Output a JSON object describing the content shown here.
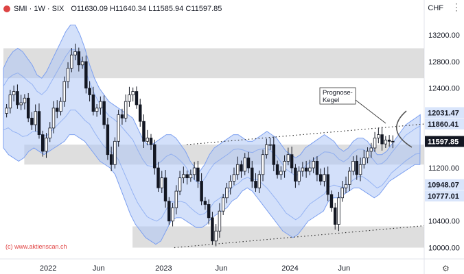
{
  "legend": {
    "symbol": "SMI · 1W · SIX",
    "open": "O11630.09",
    "high": "H11640.34",
    "low": "L11585.94",
    "close": "C11597.85"
  },
  "currency": "CHF",
  "copyright": "(c) www.aktienscan.ch",
  "annotation": [
    "Prognose-",
    "Kegel"
  ],
  "colors": {
    "up": "#ffffff",
    "down": "#131722",
    "band_fill": "#aec6f5",
    "band_line": "#7b9ff0",
    "zone_fill": "#c8c8c8",
    "tag_blue": "#d9e5fb",
    "tag_black": "#131722"
  },
  "chart_data": {
    "type": "candlestick",
    "ylim": [
      9830,
      13500
    ],
    "y_ticks": [
      10000,
      10400,
      10800,
      11200,
      11600,
      12000,
      12400,
      12800,
      13200
    ],
    "y_tick_labels": [
      "10000.00",
      "10400.00",
      "10800.00",
      "11200.00",
      "11600.00",
      "12000.00",
      "12400.00",
      "12800.00",
      "13200.00"
    ],
    "x_labels": [
      {
        "label": "2022",
        "week": 12
      },
      {
        "label": "Jun",
        "week": 26
      },
      {
        "label": "2023",
        "week": 44
      },
      {
        "label": "Jun",
        "week": 60
      },
      {
        "label": "2024",
        "week": 79
      },
      {
        "label": "Jun",
        "week": 94
      }
    ],
    "total_weeks": 101,
    "closes": [
      12100,
      12300,
      12350,
      12150,
      12180,
      12250,
      11950,
      11850,
      12050,
      11700,
      11450,
      11650,
      11800,
      12100,
      12050,
      12200,
      12500,
      12700,
      12900,
      12950,
      12750,
      12800,
      12400,
      12300,
      12050,
      12100,
      12200,
      11850,
      11400,
      11250,
      11600,
      12000,
      11950,
      12200,
      12300,
      12350,
      12150,
      11900,
      11600,
      11650,
      11550,
      11200,
      10900,
      11050,
      10700,
      10400,
      10600,
      10850,
      11050,
      11100,
      11050,
      11100,
      11200,
      11000,
      10700,
      10650,
      10450,
      10100,
      10250,
      10550,
      10750,
      10900,
      11000,
      11100,
      11250,
      11150,
      11350,
      11200,
      11000,
      10900,
      11100,
      11400,
      11550,
      11550,
      11250,
      11100,
      11150,
      11300,
      11400,
      11200,
      11000,
      11150,
      11200,
      11150,
      11200,
      11300,
      11100,
      11000,
      11100,
      10800,
      10600,
      10350,
      10750,
      10900,
      10950,
      11150,
      11300,
      11100,
      11250,
      11350,
      11450,
      11500,
      11650,
      11700,
      11560,
      11620,
      11600,
      11597.85
    ],
    "upper_band": [
      12700,
      12850,
      12950,
      13000,
      12950,
      12850,
      12750,
      12600,
      12550,
      12650,
      12800,
      12950,
      13100,
      13250,
      13350,
      13350,
      13200,
      13000,
      12750,
      12550,
      12400,
      12300,
      12200,
      12150,
      12100,
      12050,
      12000,
      11950,
      11800,
      11650,
      11550,
      11550,
      11600,
      11650,
      11700,
      11700,
      11650,
      11550,
      11450,
      11300,
      11200,
      11150,
      11250,
      11400,
      11500,
      11550,
      11600,
      11650,
      11700,
      11700,
      11650,
      11600,
      11600,
      11650,
      11700,
      11750,
      11700,
      11650,
      11550,
      11450,
      11400,
      11350,
      11400,
      11500,
      11550,
      11600,
      11650,
      11700,
      11650,
      11600,
      11500,
      11450,
      11500,
      11600,
      11650,
      11650,
      11600,
      11500,
      11400,
      11400,
      11450,
      11550,
      11650,
      11750,
      11850,
      11900,
      11950,
      12000
    ],
    "lower_band": [
      11500,
      11400,
      11350,
      11300,
      11350,
      11450,
      11500,
      11450,
      11400,
      11450,
      11500,
      11550,
      11600,
      11700,
      11700,
      11650,
      11600,
      11500,
      11400,
      11300,
      11250,
      11200,
      11100,
      10900,
      10700,
      10500,
      10350,
      10250,
      10150,
      10100,
      10050,
      10100,
      10250,
      10400,
      10450,
      10450,
      10400,
      10350,
      10300,
      10300,
      10350,
      10450,
      10500,
      10550,
      10600,
      10700,
      10750,
      10850,
      10900,
      10850,
      10750,
      10650,
      10550,
      10450,
      10350,
      10250,
      10200,
      10150,
      10200,
      10300,
      10400,
      10450,
      10500,
      10550,
      10700,
      10750,
      10750,
      10800,
      10850,
      10900,
      10900,
      10850,
      10800,
      10750,
      10800,
      10900,
      11000,
      11050,
      11100,
      11150,
      11200,
      11250,
      11250
    ],
    "zones": [
      {
        "from_week": 0,
        "to_week": 101,
        "low": 12550,
        "high": 13000
      },
      {
        "from_week": 5,
        "to_week": 101,
        "low": 11250,
        "high": 11550
      },
      {
        "from_week": 31,
        "to_week": 101,
        "low": 10000,
        "high": 10320
      }
    ],
    "trendlines": [
      {
        "x1": 44,
        "y1": 11550,
        "x2": 101,
        "y2": 11860
      },
      {
        "x1": 41,
        "y1": 10000,
        "x2": 101,
        "y2": 10330
      }
    ],
    "price_tags": [
      {
        "value": 12031.47,
        "label": "12031.47",
        "style": "blue"
      },
      {
        "value": 11860.41,
        "label": "11860.41",
        "style": "blue"
      },
      {
        "value": 11597.85,
        "label": "11597.85",
        "style": "black"
      },
      {
        "value": 10948.07,
        "label": "10948.07",
        "style": "blue"
      },
      {
        "value": 10777.01,
        "label": "10777.01",
        "style": "blue"
      }
    ]
  }
}
